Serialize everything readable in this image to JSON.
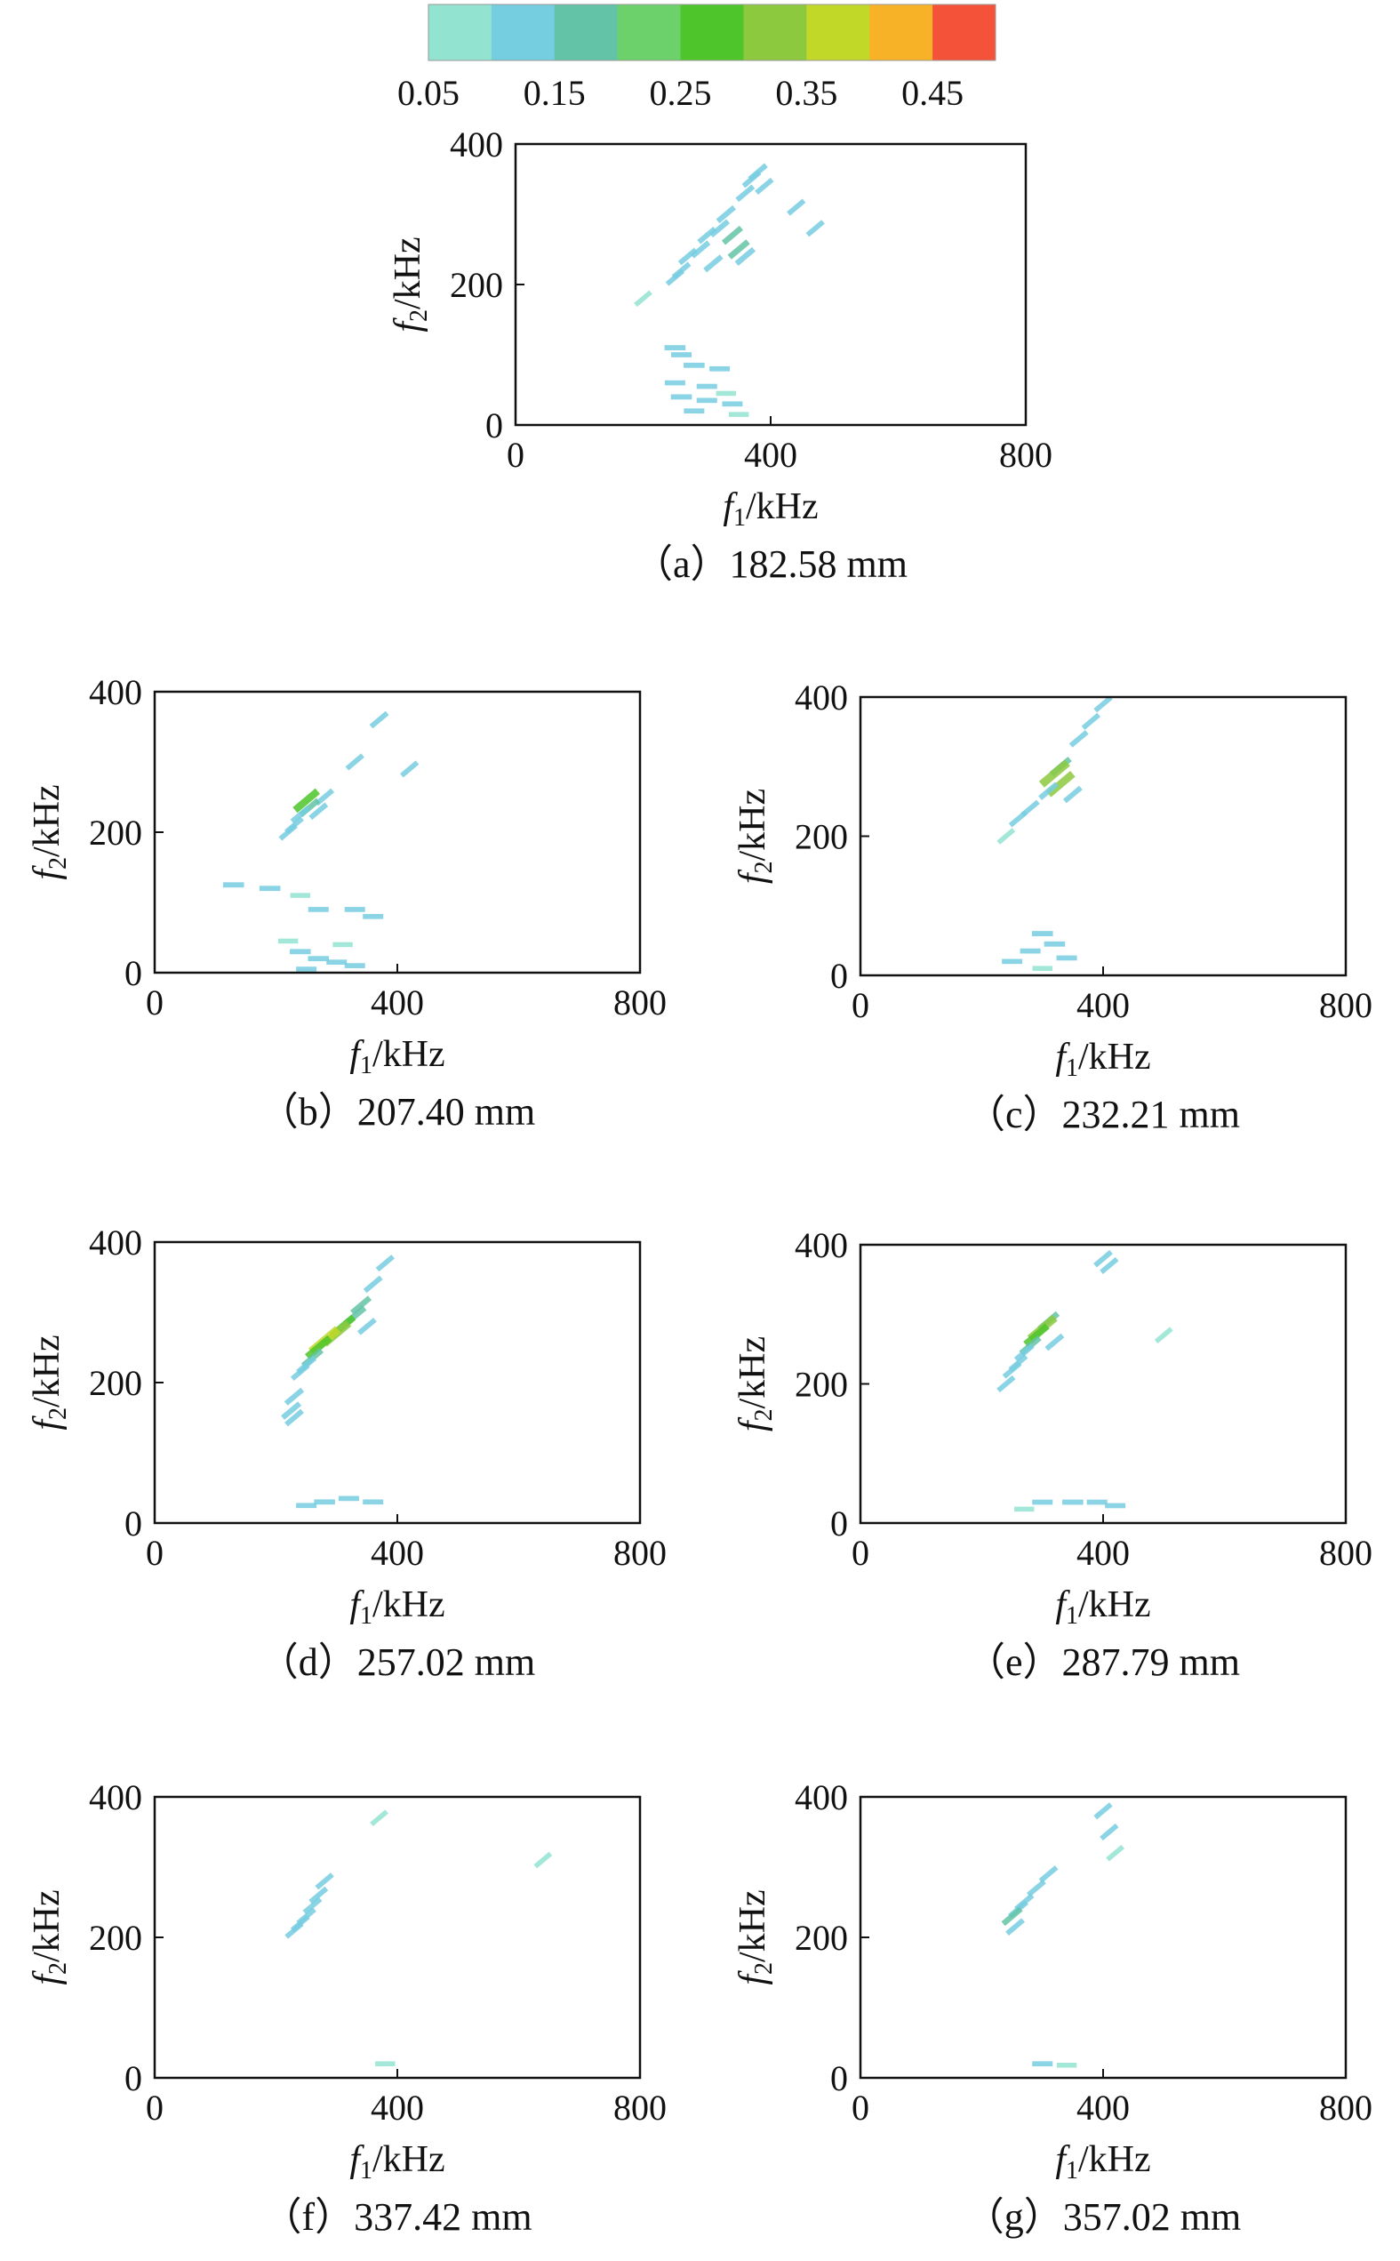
{
  "colorbar": {
    "colors": [
      "#93e3d1",
      "#75cde0",
      "#63c3a6",
      "#6cd16b",
      "#4ec52a",
      "#8dc93f",
      "#c1d829",
      "#f7b227",
      "#f5523a"
    ],
    "tick_labels": [
      "0.05",
      "0.15",
      "0.25",
      "0.35",
      "0.45"
    ]
  },
  "axes": {
    "x_label_var": "f",
    "x_label_sub": "1",
    "x_label_unit": "/kHz",
    "y_label_var": "f",
    "y_label_sub": "2",
    "y_label_unit": "/kHz",
    "x_ticks": [
      "0",
      "400",
      "800"
    ],
    "y_ticks": [
      "0",
      "200",
      "400"
    ]
  },
  "chart_data": [
    {
      "type": "heatmap",
      "caption": "（a）182.58 mm",
      "xlim": [
        0,
        800
      ],
      "ylim": [
        0,
        400
      ],
      "points": [
        [
          380,
          360,
          0.07
        ],
        [
          370,
          350,
          0.06
        ],
        [
          390,
          340,
          0.05
        ],
        [
          360,
          330,
          0.06
        ],
        [
          330,
          300,
          0.07
        ],
        [
          320,
          280,
          0.08
        ],
        [
          340,
          270,
          0.1
        ],
        [
          350,
          250,
          0.12
        ],
        [
          360,
          240,
          0.09
        ],
        [
          300,
          270,
          0.06
        ],
        [
          290,
          250,
          0.07
        ],
        [
          270,
          240,
          0.06
        ],
        [
          310,
          230,
          0.07
        ],
        [
          260,
          220,
          0.06
        ],
        [
          250,
          210,
          0.05
        ],
        [
          440,
          310,
          0.05
        ],
        [
          470,
          280,
          0.05
        ],
        [
          200,
          180,
          0.04
        ],
        [
          250,
          110,
          0.06
        ],
        [
          260,
          100,
          0.05
        ],
        [
          280,
          85,
          0.06
        ],
        [
          320,
          80,
          0.05
        ],
        [
          250,
          60,
          0.05
        ],
        [
          300,
          55,
          0.05
        ],
        [
          260,
          40,
          0.06
        ],
        [
          300,
          35,
          0.05
        ],
        [
          340,
          30,
          0.05
        ],
        [
          280,
          20,
          0.05
        ],
        [
          350,
          15,
          0.04
        ],
        [
          330,
          45,
          0.04
        ]
      ]
    },
    {
      "type": "heatmap",
      "caption": "（b）207.40 mm",
      "xlim": [
        0,
        800
      ],
      "ylim": [
        0,
        400
      ],
      "points": [
        [
          370,
          360,
          0.06
        ],
        [
          330,
          300,
          0.05
        ],
        [
          280,
          250,
          0.06
        ],
        [
          250,
          245,
          0.22
        ],
        [
          255,
          235,
          0.1
        ],
        [
          240,
          225,
          0.07
        ],
        [
          270,
          230,
          0.06
        ],
        [
          230,
          210,
          0.06
        ],
        [
          220,
          200,
          0.05
        ],
        [
          420,
          290,
          0.05
        ],
        [
          130,
          125,
          0.06
        ],
        [
          190,
          120,
          0.06
        ],
        [
          240,
          110,
          0.04
        ],
        [
          270,
          90,
          0.05
        ],
        [
          330,
          90,
          0.05
        ],
        [
          360,
          80,
          0.05
        ],
        [
          240,
          30,
          0.06
        ],
        [
          270,
          20,
          0.06
        ],
        [
          300,
          15,
          0.05
        ],
        [
          330,
          10,
          0.05
        ],
        [
          250,
          5,
          0.05
        ],
        [
          220,
          45,
          0.04
        ],
        [
          310,
          40,
          0.04
        ]
      ]
    },
    {
      "type": "heatmap",
      "caption": "（c）232.21 mm",
      "xlim": [
        0,
        800
      ],
      "ylim": [
        0,
        400
      ],
      "points": [
        [
          400,
          390,
          0.05
        ],
        [
          380,
          365,
          0.05
        ],
        [
          360,
          340,
          0.06
        ],
        [
          330,
          300,
          0.12
        ],
        [
          320,
          290,
          0.3
        ],
        [
          330,
          275,
          0.26
        ],
        [
          310,
          265,
          0.08
        ],
        [
          350,
          260,
          0.06
        ],
        [
          280,
          240,
          0.05
        ],
        [
          260,
          225,
          0.05
        ],
        [
          240,
          200,
          0.04
        ],
        [
          300,
          60,
          0.06
        ],
        [
          320,
          45,
          0.06
        ],
        [
          280,
          35,
          0.05
        ],
        [
          340,
          25,
          0.05
        ],
        [
          250,
          20,
          0.05
        ],
        [
          300,
          10,
          0.04
        ]
      ]
    },
    {
      "type": "heatmap",
      "caption": "（d）257.02 mm",
      "xlim": [
        0,
        800
      ],
      "ylim": [
        0,
        400
      ],
      "points": [
        [
          380,
          370,
          0.05
        ],
        [
          360,
          340,
          0.06
        ],
        [
          340,
          310,
          0.1
        ],
        [
          330,
          295,
          0.14
        ],
        [
          310,
          280,
          0.2
        ],
        [
          300,
          270,
          0.26
        ],
        [
          280,
          260,
          0.32
        ],
        [
          270,
          250,
          0.22
        ],
        [
          260,
          235,
          0.12
        ],
        [
          250,
          225,
          0.08
        ],
        [
          240,
          215,
          0.06
        ],
        [
          350,
          280,
          0.06
        ],
        [
          230,
          180,
          0.07
        ],
        [
          225,
          160,
          0.08
        ],
        [
          230,
          150,
          0.06
        ],
        [
          280,
          30,
          0.06
        ],
        [
          320,
          35,
          0.05
        ],
        [
          360,
          30,
          0.05
        ],
        [
          250,
          25,
          0.05
        ]
      ]
    },
    {
      "type": "heatmap",
      "caption": "（e）287.79 mm",
      "xlim": [
        0,
        800
      ],
      "ylim": [
        0,
        400
      ],
      "points": [
        [
          400,
          380,
          0.06
        ],
        [
          410,
          370,
          0.05
        ],
        [
          310,
          290,
          0.12
        ],
        [
          300,
          280,
          0.28
        ],
        [
          290,
          270,
          0.2
        ],
        [
          280,
          255,
          0.12
        ],
        [
          270,
          245,
          0.08
        ],
        [
          260,
          230,
          0.06
        ],
        [
          250,
          220,
          0.06
        ],
        [
          240,
          200,
          0.05
        ],
        [
          320,
          260,
          0.06
        ],
        [
          500,
          270,
          0.04
        ],
        [
          350,
          30,
          0.06
        ],
        [
          390,
          30,
          0.05
        ],
        [
          300,
          30,
          0.05
        ],
        [
          420,
          25,
          0.05
        ],
        [
          270,
          20,
          0.04
        ]
      ]
    },
    {
      "type": "heatmap",
      "caption": "（f）337.42 mm",
      "xlim": [
        0,
        800
      ],
      "ylim": [
        0,
        400
      ],
      "points": [
        [
          280,
          280,
          0.05
        ],
        [
          270,
          260,
          0.06
        ],
        [
          260,
          245,
          0.06
        ],
        [
          250,
          230,
          0.07
        ],
        [
          240,
          220,
          0.06
        ],
        [
          230,
          210,
          0.05
        ],
        [
          370,
          370,
          0.04
        ],
        [
          640,
          310,
          0.04
        ],
        [
          380,
          20,
          0.04
        ]
      ]
    },
    {
      "type": "heatmap",
      "caption": "（g）357.02 mm",
      "xlim": [
        0,
        800
      ],
      "ylim": [
        0,
        400
      ],
      "points": [
        [
          400,
          380,
          0.05
        ],
        [
          410,
          350,
          0.05
        ],
        [
          420,
          320,
          0.04
        ],
        [
          310,
          290,
          0.06
        ],
        [
          290,
          270,
          0.06
        ],
        [
          270,
          250,
          0.07
        ],
        [
          260,
          240,
          0.08
        ],
        [
          250,
          230,
          0.1
        ],
        [
          255,
          215,
          0.06
        ],
        [
          300,
          20,
          0.05
        ],
        [
          340,
          18,
          0.04
        ]
      ]
    }
  ]
}
